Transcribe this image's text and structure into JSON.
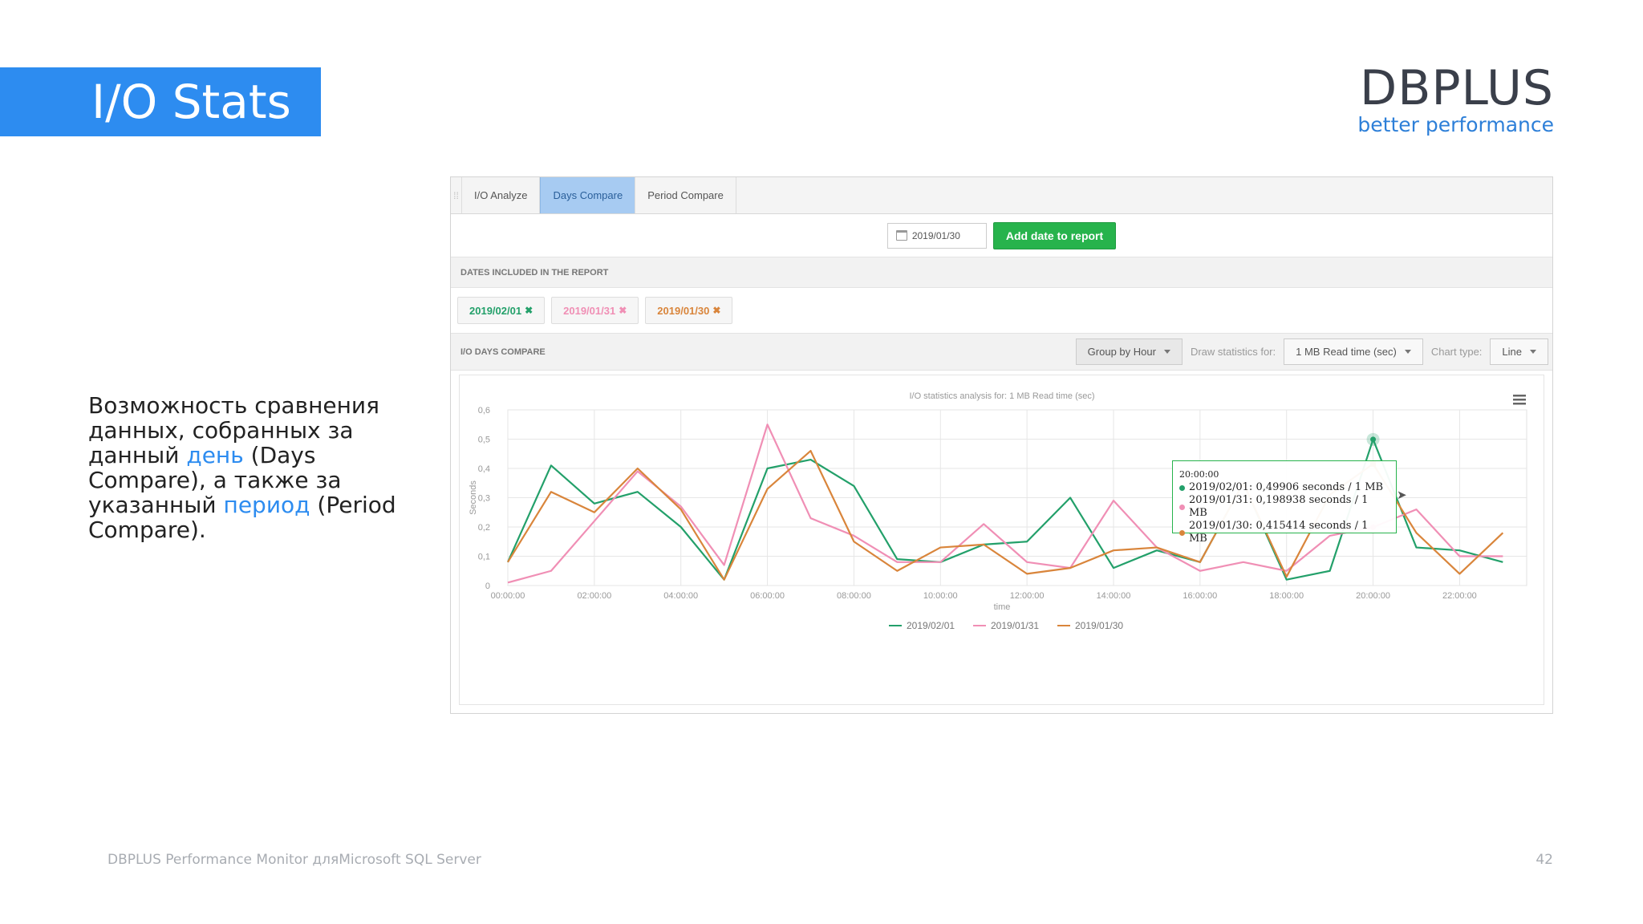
{
  "slide": {
    "title": "I/O Stats",
    "logo_main": "DBPLUS",
    "logo_sub": "better performance",
    "desc_part1": "Возможность сравнения данных, собранных за данный ",
    "desc_hl1": "день",
    "desc_part2": " (Days Compare), а также за указанный ",
    "desc_hl2": "период",
    "desc_part3": " (Period Compare).",
    "footer": "DBPLUS Performance Monitor дляMicrosoft SQL Server",
    "page_number": "42"
  },
  "app": {
    "tabs": [
      {
        "label": "I/O Analyze",
        "active": false
      },
      {
        "label": "Days Compare",
        "active": true
      },
      {
        "label": "Period Compare",
        "active": false
      }
    ],
    "date_input_value": "2019/01/30",
    "add_button": "Add date to report",
    "dates_section": "DATES INCLUDED IN THE REPORT",
    "chips": [
      {
        "label": "2019/02/01",
        "color": "#23a06a"
      },
      {
        "label": "2019/01/31",
        "color": "#f08fb5"
      },
      {
        "label": "2019/01/30",
        "color": "#d9853b"
      }
    ],
    "compare_title": "I/O DAYS COMPARE",
    "group_by": "Group by Hour",
    "draw_label": "Draw statistics for:",
    "draw_value": "1 MB Read time (sec)",
    "chart_type_label": "Chart type:",
    "chart_type_value": "Line",
    "tooltip": {
      "time": "20:00:00",
      "rows": [
        {
          "text": "2019/02/01: 0,49906 seconds / 1 MB",
          "color": "#23a06a"
        },
        {
          "text": "2019/01/31: 0,198938 seconds / 1 MB",
          "color": "#f08fb5"
        },
        {
          "text": "2019/01/30: 0,415414 seconds / 1 MB",
          "color": "#d9853b"
        }
      ]
    }
  },
  "chart_data": {
    "type": "line",
    "title": "I/O statistics analysis for: 1 MB Read time (sec)",
    "xlabel": "time",
    "ylabel": "Seconds",
    "ylim": [
      0,
      0.6
    ],
    "yticks": [
      "0",
      "0,1",
      "0,2",
      "0,3",
      "0,4",
      "0,5",
      "0,6"
    ],
    "xticks": [
      "00:00:00",
      "02:00:00",
      "04:00:00",
      "06:00:00",
      "08:00:00",
      "10:00:00",
      "12:00:00",
      "14:00:00",
      "16:00:00",
      "18:00:00",
      "20:00:00",
      "22:00:00"
    ],
    "x": [
      0,
      1,
      2,
      3,
      4,
      5,
      6,
      7,
      8,
      9,
      10,
      11,
      12,
      13,
      14,
      15,
      16,
      17,
      18,
      19,
      20,
      21,
      22,
      23
    ],
    "grid": true,
    "legend_position": "bottom",
    "series": [
      {
        "name": "2019/02/01",
        "color": "#23a06a",
        "values": [
          0.08,
          0.41,
          0.28,
          0.32,
          0.2,
          0.02,
          0.4,
          0.43,
          0.34,
          0.09,
          0.08,
          0.14,
          0.15,
          0.3,
          0.06,
          0.12,
          0.08,
          0.35,
          0.02,
          0.05,
          0.49906,
          0.13,
          0.12,
          0.08
        ]
      },
      {
        "name": "2019/01/31",
        "color": "#f08fb5",
        "values": [
          0.01,
          0.05,
          0.22,
          0.39,
          0.27,
          0.07,
          0.55,
          0.23,
          0.17,
          0.08,
          0.08,
          0.21,
          0.08,
          0.06,
          0.29,
          0.13,
          0.05,
          0.08,
          0.05,
          0.17,
          0.198938,
          0.26,
          0.1,
          0.1
        ]
      },
      {
        "name": "2019/01/30",
        "color": "#d9853b",
        "values": [
          0.08,
          0.32,
          0.25,
          0.4,
          0.26,
          0.02,
          0.33,
          0.46,
          0.15,
          0.05,
          0.13,
          0.14,
          0.04,
          0.06,
          0.12,
          0.13,
          0.08,
          0.35,
          0.03,
          0.31,
          0.415414,
          0.18,
          0.04,
          0.18
        ]
      }
    ]
  }
}
